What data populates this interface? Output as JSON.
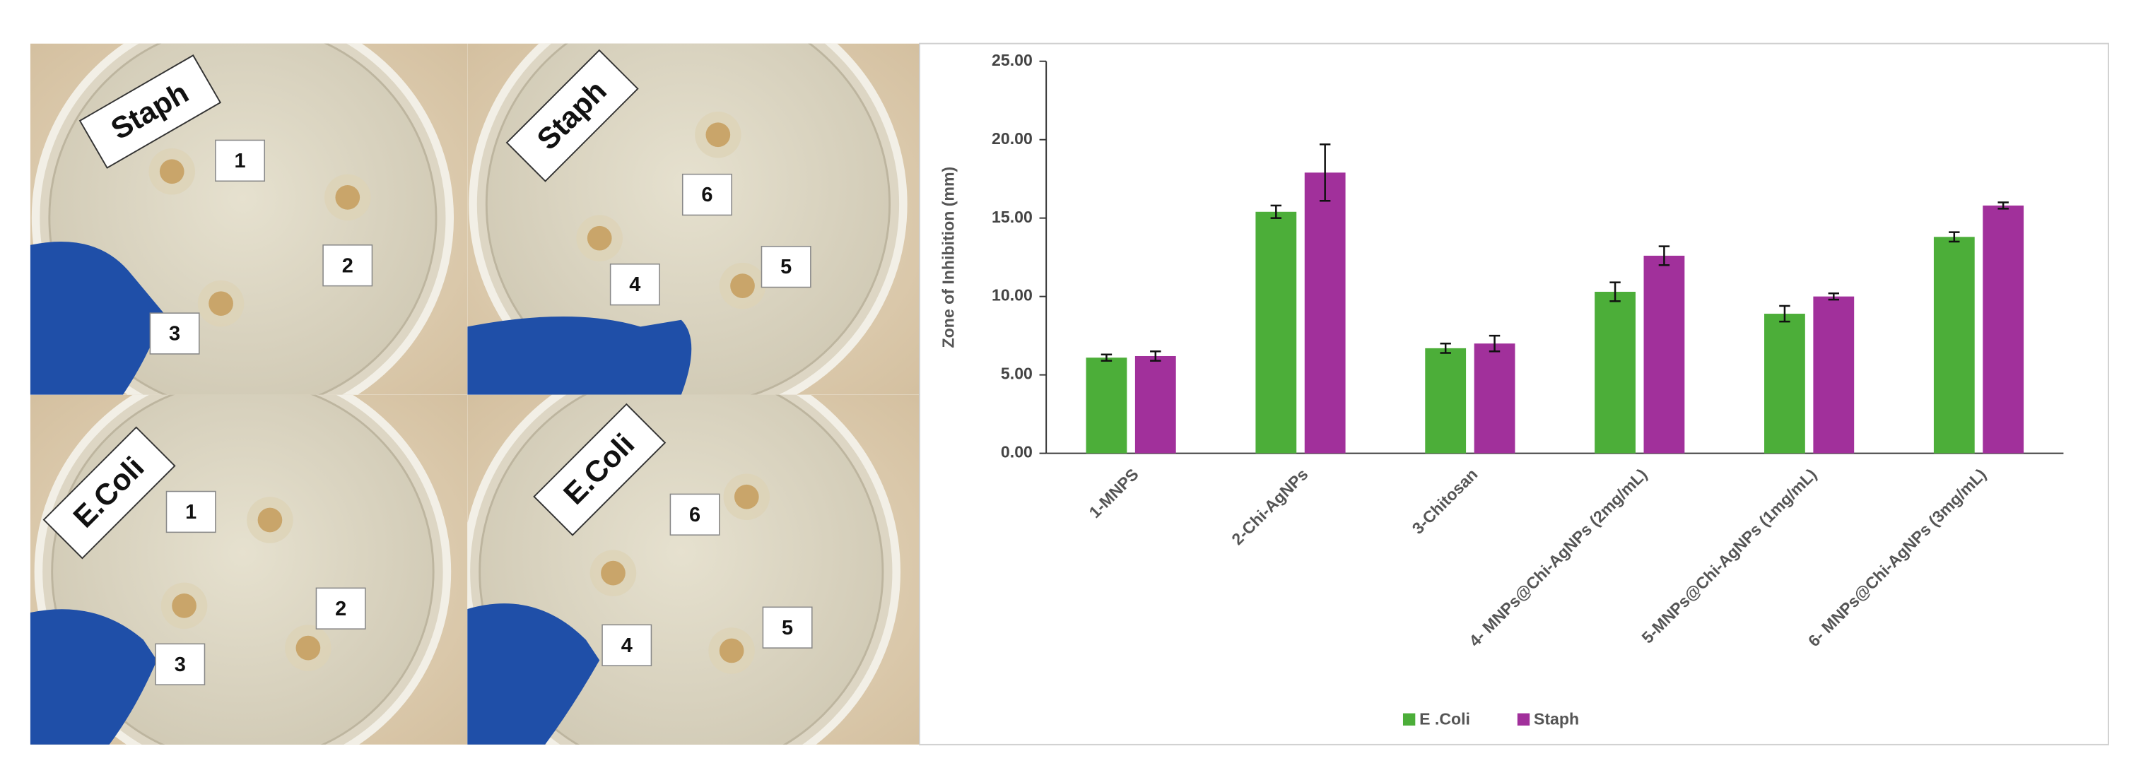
{
  "panels": [
    {
      "organism": "Staph",
      "wells": [
        "1",
        "2",
        "3"
      ]
    },
    {
      "organism": "Staph",
      "wells": [
        "6",
        "4",
        "5"
      ]
    },
    {
      "organism": "E.Coli",
      "wells": [
        "1",
        "2",
        "3"
      ]
    },
    {
      "organism": "E.Coli",
      "wells": [
        "6",
        "4",
        "5"
      ]
    }
  ],
  "chart_data": {
    "type": "bar",
    "y_label": "Zone of Inhibition (mm)",
    "categories": [
      "1-MNPS",
      "2-Chi-AgNPs",
      "3-Chitosan",
      "4- MNPs@Chi-AgNPs (2mg/mL)",
      "5-MNPs@Chi-AgNPs (1mg/mL)",
      "6- MNPs@Chi-AgNPs (3mg/mL)"
    ],
    "series": [
      {
        "name": "E .Coli",
        "color": "#4cae39",
        "values": [
          6.1,
          15.4,
          6.7,
          10.3,
          8.9,
          13.8
        ],
        "errors": [
          0.2,
          0.4,
          0.3,
          0.6,
          0.5,
          0.3
        ]
      },
      {
        "name": "Staph",
        "color": "#a1309b",
        "values": [
          6.2,
          17.9,
          7.0,
          12.6,
          10.0,
          15.8
        ],
        "errors": [
          0.3,
          1.8,
          0.5,
          0.6,
          0.2,
          0.2
        ]
      }
    ],
    "ylim": [
      0,
      25
    ],
    "yticks": [
      {
        "value": 0,
        "label": "0.00"
      },
      {
        "value": 5,
        "label": "5.00"
      },
      {
        "value": 10,
        "label": "10.00"
      },
      {
        "value": 15,
        "label": "15.00"
      },
      {
        "value": 20,
        "label": "20.00"
      },
      {
        "value": 25,
        "label": "25.00"
      }
    ],
    "legend": "bottom"
  }
}
